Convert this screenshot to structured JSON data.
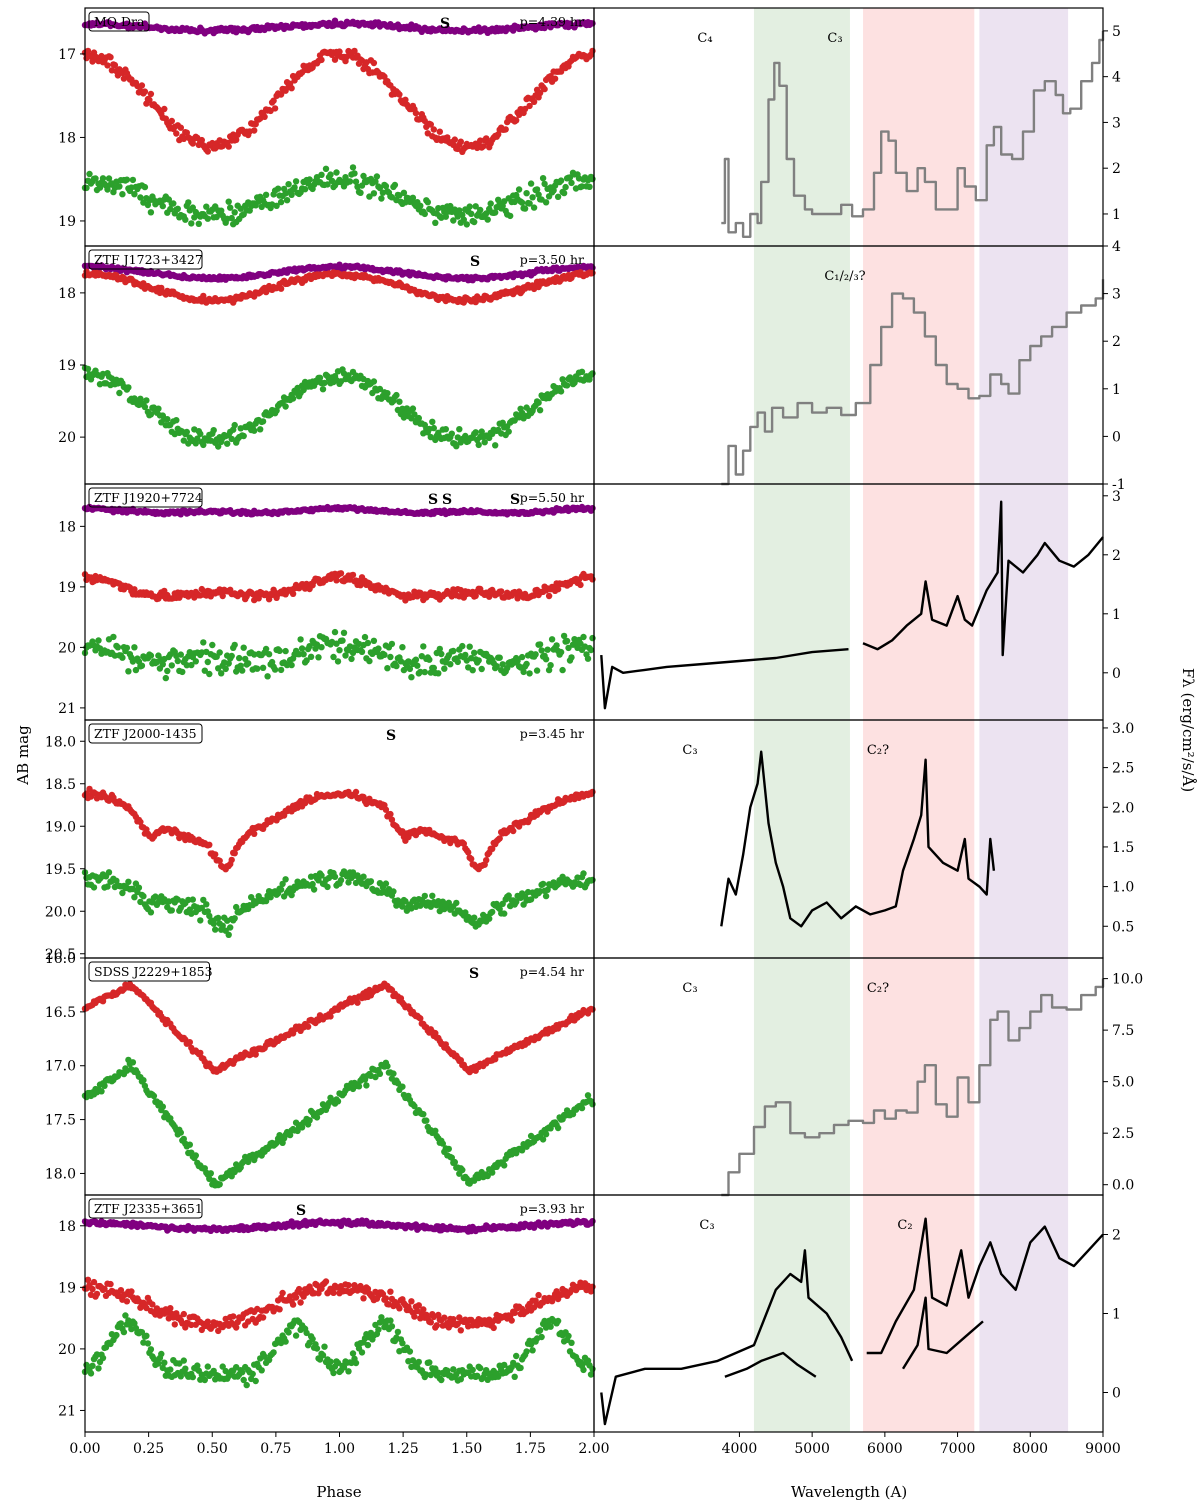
{
  "figure": {
    "ylabel_left": "AB mag",
    "xlabel_left": "Phase",
    "xlabel_right": "Wavelength (A)",
    "ylabel_right": "Fλ (erg/cm²/s/Å)"
  },
  "band_colors": {
    "purple": "#800080",
    "red": "#d62728",
    "green": "#2ca02c",
    "gray": "#808080",
    "black": "#000000"
  },
  "shaded_regions": [
    {
      "x0": 4200,
      "x1": 5520,
      "color": "#e3efe1"
    },
    {
      "x0": 5700,
      "x1": 7230,
      "color": "#fde1e1"
    },
    {
      "x0": 7300,
      "x1": 8520,
      "color": "#ece3f1"
    }
  ],
  "chart_data": [
    {
      "type": "scatter",
      "panel": "lightcurve",
      "name": "MQ Dra",
      "period_label": "p=4.39 hr",
      "marks": [
        "S"
      ],
      "x_range": [
        0,
        2
      ],
      "ylim": [
        19.3,
        16.45
      ],
      "yticks": [
        17,
        18,
        19
      ],
      "series": [
        {
          "band": "purple",
          "mean": 16.68,
          "amp": 0.04,
          "noise": 0.03,
          "shape": "sin"
        },
        {
          "band": "red",
          "mean": 17.55,
          "amp": 0.55,
          "noise": 0.08,
          "shape": "sin"
        },
        {
          "band": "green",
          "mean": 18.72,
          "amp": 0.22,
          "noise": 0.13,
          "shape": "sin"
        }
      ]
    },
    {
      "type": "line",
      "panel": "spectrum",
      "name": "MQ Dra spectrum",
      "color": "gray",
      "x_range": [
        2000,
        9000
      ],
      "ylim": [
        0.3,
        5.5
      ],
      "yticks": [
        1,
        2,
        3,
        4,
        5
      ],
      "labels": [
        "C₄",
        "C₃"
      ],
      "points": [
        [
          3750,
          0.8
        ],
        [
          3800,
          2.2
        ],
        [
          3850,
          0.6
        ],
        [
          3950,
          0.8
        ],
        [
          4050,
          0.5
        ],
        [
          4150,
          1.0
        ],
        [
          4250,
          0.8
        ],
        [
          4300,
          1.7
        ],
        [
          4400,
          3.5
        ],
        [
          4480,
          4.3
        ],
        [
          4550,
          3.8
        ],
        [
          4650,
          2.2
        ],
        [
          4750,
          1.4
        ],
        [
          4900,
          1.1
        ],
        [
          5000,
          1.0
        ],
        [
          5200,
          1.0
        ],
        [
          5400,
          1.2
        ],
        [
          5550,
          0.95
        ],
        [
          5700,
          1.1
        ],
        [
          5850,
          1.9
        ],
        [
          5950,
          2.8
        ],
        [
          6050,
          2.6
        ],
        [
          6150,
          1.9
        ],
        [
          6300,
          1.5
        ],
        [
          6450,
          2.0
        ],
        [
          6550,
          1.7
        ],
        [
          6700,
          1.1
        ],
        [
          6850,
          1.1
        ],
        [
          7000,
          2.0
        ],
        [
          7100,
          1.6
        ],
        [
          7250,
          1.3
        ],
        [
          7400,
          2.5
        ],
        [
          7500,
          2.9
        ],
        [
          7600,
          2.3
        ],
        [
          7750,
          2.2
        ],
        [
          7900,
          2.8
        ],
        [
          8050,
          3.7
        ],
        [
          8200,
          3.9
        ],
        [
          8350,
          3.6
        ],
        [
          8450,
          3.2
        ],
        [
          8550,
          3.3
        ],
        [
          8700,
          3.9
        ],
        [
          8850,
          4.3
        ],
        [
          8950,
          4.8
        ],
        [
          9000,
          5.0
        ]
      ]
    },
    {
      "type": "scatter",
      "panel": "lightcurve",
      "name": "ZTF J1723+3427",
      "period_label": "p=3.50 hr",
      "marks": [
        "S"
      ],
      "x_range": [
        0,
        2
      ],
      "ylim": [
        20.65,
        17.35
      ],
      "yticks": [
        18,
        19,
        20
      ],
      "series": [
        {
          "band": "purple",
          "mean": 17.72,
          "amp": 0.08,
          "noise": 0.03,
          "shape": "sin"
        },
        {
          "band": "red",
          "mean": 17.92,
          "amp": 0.18,
          "noise": 0.04,
          "shape": "sin"
        },
        {
          "band": "green",
          "mean": 19.6,
          "amp": 0.45,
          "noise": 0.12,
          "shape": "sin"
        }
      ]
    },
    {
      "type": "line",
      "panel": "spectrum",
      "name": "ZTF J1723+3427 spectrum",
      "color": "gray",
      "x_range": [
        2000,
        9000
      ],
      "ylim": [
        -1,
        4
      ],
      "yticks": [
        -1,
        0,
        1,
        2,
        3,
        4
      ],
      "labels": [
        "C₁/₂/₃?"
      ],
      "points": [
        [
          3750,
          -1.0
        ],
        [
          3850,
          -0.2
        ],
        [
          3950,
          -0.8
        ],
        [
          4050,
          -0.3
        ],
        [
          4150,
          0.2
        ],
        [
          4250,
          0.5
        ],
        [
          4350,
          0.1
        ],
        [
          4450,
          0.6
        ],
        [
          4600,
          0.4
        ],
        [
          4800,
          0.7
        ],
        [
          5000,
          0.5
        ],
        [
          5200,
          0.6
        ],
        [
          5400,
          0.45
        ],
        [
          5600,
          0.7
        ],
        [
          5800,
          1.5
        ],
        [
          5950,
          2.3
        ],
        [
          6100,
          3.0
        ],
        [
          6250,
          2.9
        ],
        [
          6400,
          2.6
        ],
        [
          6550,
          2.1
        ],
        [
          6700,
          1.5
        ],
        [
          6850,
          1.1
        ],
        [
          7000,
          1.0
        ],
        [
          7150,
          0.8
        ],
        [
          7300,
          0.85
        ],
        [
          7450,
          1.3
        ],
        [
          7600,
          1.1
        ],
        [
          7700,
          0.9
        ],
        [
          7850,
          1.6
        ],
        [
          8000,
          1.9
        ],
        [
          8150,
          2.1
        ],
        [
          8300,
          2.3
        ],
        [
          8500,
          2.6
        ],
        [
          8700,
          2.75
        ],
        [
          8900,
          2.9
        ],
        [
          9000,
          3.3
        ]
      ]
    },
    {
      "type": "scatter",
      "panel": "lightcurve",
      "name": "ZTF J1920+7724",
      "period_label": "p=5.50 hr",
      "marks": [
        "S",
        "S",
        "S"
      ],
      "x_range": [
        0,
        2
      ],
      "ylim": [
        21.2,
        17.3
      ],
      "yticks": [
        18,
        19,
        20,
        21
      ],
      "series": [
        {
          "band": "purple",
          "mean": 17.75,
          "amp": 0.05,
          "noise": 0.03,
          "shape": "sin2"
        },
        {
          "band": "red",
          "mean": 19.05,
          "amp": 0.2,
          "noise": 0.08,
          "shape": "sin2"
        },
        {
          "band": "green",
          "mean": 20.15,
          "amp": 0.2,
          "noise": 0.25,
          "shape": "sin2"
        }
      ]
    },
    {
      "type": "line",
      "panel": "spectrum",
      "name": "ZTF J1920+7724 spectrum",
      "color": "black",
      "x_range": [
        2000,
        9000
      ],
      "ylim": [
        -0.8,
        3.2
      ],
      "yticks": [
        0,
        1,
        2,
        3
      ],
      "labels": [],
      "points": [
        [
          2100,
          0.3
        ],
        [
          2150,
          -0.6
        ],
        [
          2250,
          0.1
        ],
        [
          2400,
          0.0
        ],
        [
          2700,
          0.05
        ],
        [
          3000,
          0.1
        ],
        [
          3500,
          0.15
        ],
        [
          4000,
          0.2
        ],
        [
          4500,
          0.25
        ],
        [
          5000,
          0.35
        ],
        [
          5500,
          0.4
        ],
        null,
        [
          5700,
          0.5
        ],
        [
          5900,
          0.4
        ],
        [
          6100,
          0.55
        ],
        [
          6300,
          0.8
        ],
        [
          6500,
          1.0
        ],
        [
          6560,
          1.55
        ],
        [
          6650,
          0.9
        ],
        [
          6850,
          0.8
        ],
        [
          7000,
          1.3
        ],
        [
          7100,
          0.9
        ],
        [
          7200,
          0.8
        ],
        [
          7400,
          1.4
        ],
        [
          7550,
          1.7
        ],
        [
          7600,
          2.9
        ],
        [
          7620,
          0.3
        ],
        [
          7700,
          1.9
        ],
        [
          7900,
          1.7
        ],
        [
          8100,
          2.0
        ],
        [
          8200,
          2.2
        ],
        [
          8400,
          1.9
        ],
        [
          8600,
          1.8
        ],
        [
          8800,
          2.0
        ],
        [
          9000,
          2.3
        ]
      ]
    },
    {
      "type": "scatter",
      "panel": "lightcurve",
      "name": "ZTF J2000-1435",
      "period_label": "p=3.45 hr",
      "marks": [
        "S"
      ],
      "x_range": [
        0,
        2
      ],
      "ylim": [
        20.55,
        17.75
      ],
      "yticks": [
        18.0,
        18.5,
        19.0,
        19.5,
        20.0,
        20.5
      ],
      "series": [
        {
          "band": "red",
          "mean": 18.9,
          "amp": 0.4,
          "noise": 0.04,
          "shape": "ecl"
        },
        {
          "band": "green",
          "mean": 19.8,
          "amp": 0.25,
          "noise": 0.1,
          "shape": "ecl"
        }
      ]
    },
    {
      "type": "line",
      "panel": "spectrum",
      "name": "ZTF J2000-1435 spectrum",
      "color": "black",
      "x_range": [
        2000,
        9000
      ],
      "ylim": [
        0.1,
        3.1
      ],
      "yticks": [
        0.5,
        1.0,
        1.5,
        2.0,
        2.5,
        3.0
      ],
      "labels": [
        "C₃",
        "C₂?"
      ],
      "points": [
        [
          3750,
          0.5
        ],
        [
          3850,
          1.1
        ],
        [
          3950,
          0.9
        ],
        [
          4050,
          1.4
        ],
        [
          4150,
          2.0
        ],
        [
          4250,
          2.3
        ],
        [
          4300,
          2.7
        ],
        [
          4400,
          1.8
        ],
        [
          4500,
          1.3
        ],
        [
          4600,
          1.0
        ],
        [
          4700,
          0.6
        ],
        [
          4850,
          0.5
        ],
        [
          5000,
          0.7
        ],
        [
          5200,
          0.8
        ],
        [
          5400,
          0.6
        ],
        [
          5600,
          0.75
        ],
        [
          5800,
          0.65
        ],
        [
          6000,
          0.7
        ],
        [
          6150,
          0.75
        ],
        [
          6250,
          1.2
        ],
        [
          6400,
          1.6
        ],
        [
          6500,
          1.9
        ],
        [
          6560,
          2.6
        ],
        [
          6600,
          1.5
        ],
        [
          6800,
          1.3
        ],
        [
          7000,
          1.2
        ],
        [
          7100,
          1.6
        ],
        [
          7150,
          1.1
        ],
        [
          7300,
          1.0
        ],
        [
          7400,
          0.9
        ],
        [
          7450,
          1.6
        ],
        [
          7500,
          1.2
        ]
      ]
    },
    {
      "type": "scatter",
      "panel": "lightcurve",
      "name": "SDSS J2229+1853",
      "period_label": "p=4.54 hr",
      "marks": [
        "S"
      ],
      "x_range": [
        0,
        2
      ],
      "ylim": [
        18.2,
        16.0
      ],
      "yticks": [
        16.0,
        16.5,
        17.0,
        17.5,
        18.0
      ],
      "series": [
        {
          "band": "red",
          "mean": 16.65,
          "amp": 0.4,
          "noise": 0.03,
          "shape": "saw"
        },
        {
          "band": "green",
          "mean": 17.55,
          "amp": 0.55,
          "noise": 0.05,
          "shape": "saw"
        }
      ]
    },
    {
      "type": "line",
      "panel": "spectrum",
      "name": "SDSS J2229+1853 spectrum",
      "color": "gray",
      "x_range": [
        2000,
        9000
      ],
      "ylim": [
        -0.5,
        11
      ],
      "yticks": [
        0.0,
        2.5,
        5.0,
        7.5,
        10.0
      ],
      "labels": [
        "C₃",
        "C₂?"
      ],
      "points": [
        [
          3750,
          -0.5
        ],
        [
          3850,
          0.6
        ],
        [
          4000,
          1.5
        ],
        [
          4200,
          2.8
        ],
        [
          4350,
          3.8
        ],
        [
          4500,
          4.0
        ],
        [
          4700,
          2.5
        ],
        [
          4900,
          2.3
        ],
        [
          5100,
          2.5
        ],
        [
          5300,
          2.9
        ],
        [
          5500,
          3.1
        ],
        [
          5700,
          3.0
        ],
        [
          5850,
          3.6
        ],
        [
          6000,
          3.2
        ],
        [
          6150,
          3.6
        ],
        [
          6300,
          3.5
        ],
        [
          6450,
          5.0
        ],
        [
          6550,
          5.8
        ],
        [
          6700,
          3.9
        ],
        [
          6850,
          3.3
        ],
        [
          7000,
          5.2
        ],
        [
          7150,
          4.0
        ],
        [
          7300,
          5.8
        ],
        [
          7450,
          8.0
        ],
        [
          7550,
          8.4
        ],
        [
          7700,
          7.0
        ],
        [
          7850,
          7.6
        ],
        [
          8000,
          8.4
        ],
        [
          8150,
          9.2
        ],
        [
          8300,
          8.6
        ],
        [
          8500,
          8.5
        ],
        [
          8700,
          9.2
        ],
        [
          8900,
          9.6
        ],
        [
          9000,
          10.0
        ]
      ]
    },
    {
      "type": "scatter",
      "panel": "lightcurve",
      "name": "ZTF J2335+3651",
      "period_label": "p=3.93 hr",
      "marks": [
        "S"
      ],
      "x_range": [
        0,
        2
      ],
      "ylim": [
        21.35,
        17.5
      ],
      "yticks": [
        18,
        19,
        20,
        21
      ],
      "series": [
        {
          "band": "purple",
          "mean": 18.0,
          "amp": 0.05,
          "noise": 0.04,
          "shape": "sin"
        },
        {
          "band": "red",
          "mean": 19.3,
          "amp": 0.3,
          "noise": 0.12,
          "shape": "sin"
        },
        {
          "band": "green",
          "mean": 20.1,
          "amp": 0.5,
          "noise": 0.15,
          "shape": "hump"
        }
      ]
    },
    {
      "type": "line",
      "panel": "spectrum",
      "name": "ZTF J2335+3651 spectrum",
      "color": "black",
      "x_range": [
        2000,
        9000
      ],
      "ylim": [
        -0.5,
        2.5
      ],
      "yticks": [
        0,
        1,
        2
      ],
      "labels": [
        "C₃",
        "C₂"
      ],
      "points": [
        [
          2100,
          0.0
        ],
        [
          2150,
          -0.4
        ],
        [
          2300,
          0.2
        ],
        [
          2700,
          0.3
        ],
        [
          3200,
          0.3
        ],
        [
          3700,
          0.4
        ],
        [
          4200,
          0.6
        ],
        [
          4500,
          1.3
        ],
        [
          4700,
          1.5
        ],
        [
          4850,
          1.4
        ],
        [
          4900,
          1.8
        ],
        [
          4950,
          1.2
        ],
        [
          5200,
          1.0
        ],
        [
          5400,
          0.7
        ],
        [
          5550,
          0.4
        ],
        null,
        [
          5750,
          0.5
        ],
        [
          5950,
          0.5
        ],
        [
          6150,
          0.9
        ],
        [
          6400,
          1.3
        ],
        [
          6560,
          2.2
        ],
        [
          6650,
          1.2
        ],
        [
          6850,
          1.1
        ],
        [
          7050,
          1.8
        ],
        [
          7150,
          1.2
        ],
        [
          7300,
          1.6
        ],
        [
          7450,
          1.9
        ],
        [
          7600,
          1.5
        ],
        [
          7800,
          1.3
        ],
        [
          8000,
          1.9
        ],
        [
          8200,
          2.1
        ],
        [
          8400,
          1.7
        ],
        [
          8600,
          1.6
        ],
        [
          8800,
          1.8
        ],
        [
          9000,
          2.0
        ]
      ]
    },
    {
      "type": "line",
      "panel": "spectrum-secondary",
      "name": "ZTF J2335+3651 second spectrum",
      "color": "black",
      "x_range": [
        2000,
        9000
      ],
      "ylim": [
        -0.5,
        2.5
      ],
      "points": [
        [
          3800,
          0.2
        ],
        [
          4100,
          0.3
        ],
        [
          4300,
          0.4
        ],
        [
          4600,
          0.5
        ],
        [
          4800,
          0.35
        ],
        [
          5050,
          0.2
        ],
        null,
        [
          6250,
          0.3
        ],
        [
          6450,
          0.6
        ],
        [
          6560,
          1.2
        ],
        [
          6600,
          0.55
        ],
        [
          6850,
          0.5
        ],
        [
          7100,
          0.7
        ],
        [
          7350,
          0.9
        ]
      ]
    }
  ],
  "axes": {
    "phase_ticks": [
      "0.00",
      "0.25",
      "0.50",
      "0.75",
      "1.00",
      "1.25",
      "1.50",
      "1.75",
      "2.00"
    ],
    "wave_ticks": [
      "4000",
      "5000",
      "6000",
      "7000",
      "8000",
      "9000"
    ]
  }
}
